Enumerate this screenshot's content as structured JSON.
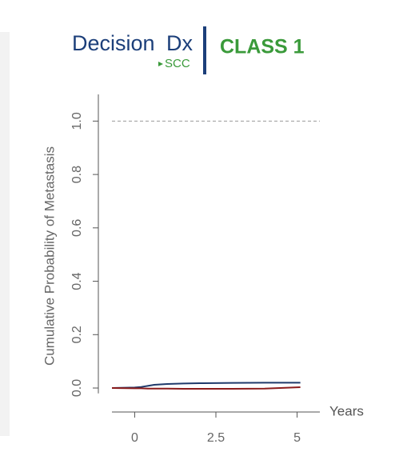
{
  "header": {
    "logo_word": "Decision",
    "logo_mark": "Dx",
    "logo_sub": "SCC",
    "class_label": "CLASS 1"
  },
  "chart_data": {
    "type": "line",
    "y_label": "Cumulative Probability of Metastasis",
    "x_label": "Years",
    "x": [
      -0.7,
      0,
      0.2,
      0.4,
      0.6,
      1,
      1.5,
      2,
      3,
      4,
      5.1
    ],
    "series": [
      {
        "color": "#1f3a6b",
        "values": [
          0,
          0.002,
          0.004,
          0.008,
          0.012,
          0.015,
          0.017,
          0.018,
          0.019,
          0.02,
          0.02
        ]
      },
      {
        "color": "#8b1c1c",
        "values": [
          0,
          -0.001,
          -0.001,
          -0.002,
          -0.002,
          -0.002,
          -0.003,
          -0.003,
          -0.003,
          -0.002,
          0.003
        ]
      }
    ],
    "xlim": [
      -0.7,
      5.7
    ],
    "xticks": [
      0,
      2.5,
      5
    ],
    "ylim": [
      -0.02,
      1.1
    ],
    "yticks": [
      {
        "value": 0,
        "label": "0.0"
      },
      0.2,
      0.4,
      0.6,
      0.8,
      {
        "value": 1,
        "label": "1.0"
      }
    ],
    "reference_line": {
      "value": 1,
      "label": null
    }
  }
}
